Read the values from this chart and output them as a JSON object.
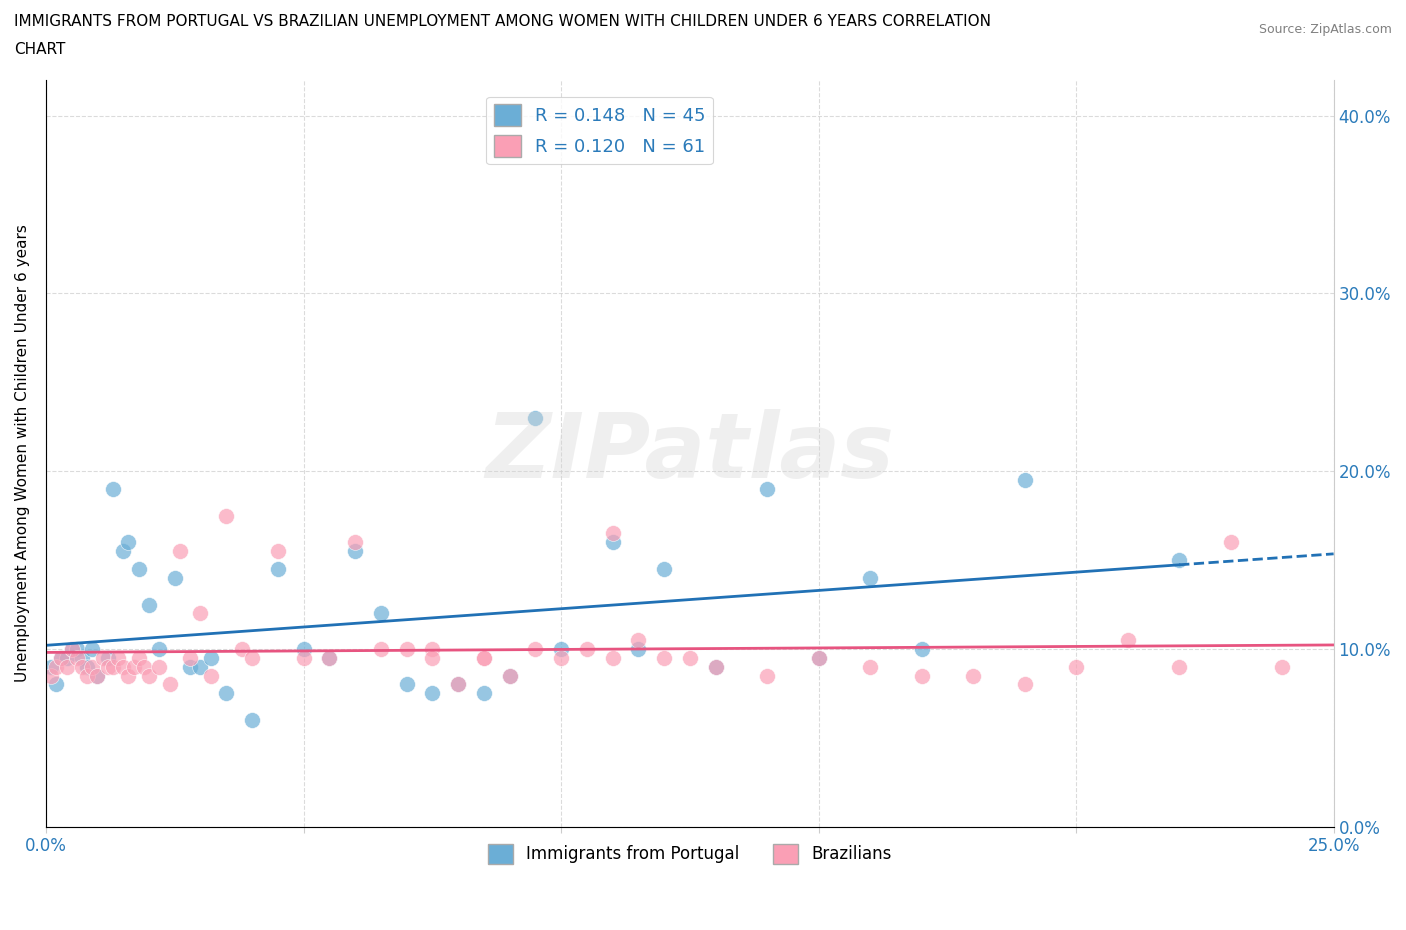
{
  "title_line1": "IMMIGRANTS FROM PORTUGAL VS BRAZILIAN UNEMPLOYMENT AMONG WOMEN WITH CHILDREN UNDER 6 YEARS CORRELATION",
  "title_line2": "CHART",
  "source": "Source: ZipAtlas.com",
  "ylabel": "Unemployment Among Women with Children Under 6 years",
  "xlim": [
    0.0,
    0.25
  ],
  "ylim": [
    0.0,
    0.42
  ],
  "color_portugal": "#6baed6",
  "color_brazil": "#fa9fb5",
  "color_portugal_line": "#2171b5",
  "color_brazil_line": "#e75480",
  "R_portugal": 0.148,
  "N_portugal": 45,
  "R_brazil": 0.12,
  "N_brazil": 61,
  "legend_label_portugal": "Immigrants from Portugal",
  "legend_label_brazil": "Brazilians",
  "watermark": "ZIPatlas",
  "portugal_x": [
    0.001,
    0.002,
    0.003,
    0.004,
    0.005,
    0.006,
    0.007,
    0.008,
    0.009,
    0.01,
    0.012,
    0.013,
    0.015,
    0.016,
    0.018,
    0.02,
    0.022,
    0.025,
    0.028,
    0.03,
    0.032,
    0.035,
    0.04,
    0.045,
    0.05,
    0.055,
    0.06,
    0.065,
    0.07,
    0.075,
    0.08,
    0.085,
    0.09,
    0.095,
    0.1,
    0.11,
    0.115,
    0.12,
    0.13,
    0.14,
    0.15,
    0.16,
    0.17,
    0.19,
    0.22
  ],
  "portugal_y": [
    0.09,
    0.08,
    0.095,
    0.095,
    0.1,
    0.1,
    0.095,
    0.09,
    0.1,
    0.085,
    0.095,
    0.19,
    0.155,
    0.16,
    0.145,
    0.125,
    0.1,
    0.14,
    0.09,
    0.09,
    0.095,
    0.075,
    0.06,
    0.145,
    0.1,
    0.095,
    0.155,
    0.12,
    0.08,
    0.075,
    0.08,
    0.075,
    0.085,
    0.23,
    0.1,
    0.16,
    0.1,
    0.145,
    0.09,
    0.19,
    0.095,
    0.14,
    0.1,
    0.195,
    0.15
  ],
  "brazil_x": [
    0.001,
    0.002,
    0.003,
    0.004,
    0.005,
    0.006,
    0.007,
    0.008,
    0.009,
    0.01,
    0.011,
    0.012,
    0.013,
    0.014,
    0.015,
    0.016,
    0.017,
    0.018,
    0.019,
    0.02,
    0.022,
    0.024,
    0.026,
    0.028,
    0.03,
    0.032,
    0.035,
    0.038,
    0.04,
    0.045,
    0.05,
    0.055,
    0.06,
    0.065,
    0.07,
    0.075,
    0.08,
    0.085,
    0.09,
    0.1,
    0.11,
    0.115,
    0.12,
    0.125,
    0.13,
    0.14,
    0.15,
    0.16,
    0.17,
    0.18,
    0.19,
    0.2,
    0.21,
    0.22,
    0.23,
    0.24,
    0.11,
    0.105,
    0.095,
    0.085,
    0.075
  ],
  "brazil_y": [
    0.085,
    0.09,
    0.095,
    0.09,
    0.1,
    0.095,
    0.09,
    0.085,
    0.09,
    0.085,
    0.095,
    0.09,
    0.09,
    0.095,
    0.09,
    0.085,
    0.09,
    0.095,
    0.09,
    0.085,
    0.09,
    0.08,
    0.155,
    0.095,
    0.12,
    0.085,
    0.175,
    0.1,
    0.095,
    0.155,
    0.095,
    0.095,
    0.16,
    0.1,
    0.1,
    0.1,
    0.08,
    0.095,
    0.085,
    0.095,
    0.095,
    0.105,
    0.095,
    0.095,
    0.09,
    0.085,
    0.095,
    0.09,
    0.085,
    0.085,
    0.08,
    0.09,
    0.105,
    0.09,
    0.16,
    0.09,
    0.165,
    0.1,
    0.1,
    0.095,
    0.095
  ]
}
